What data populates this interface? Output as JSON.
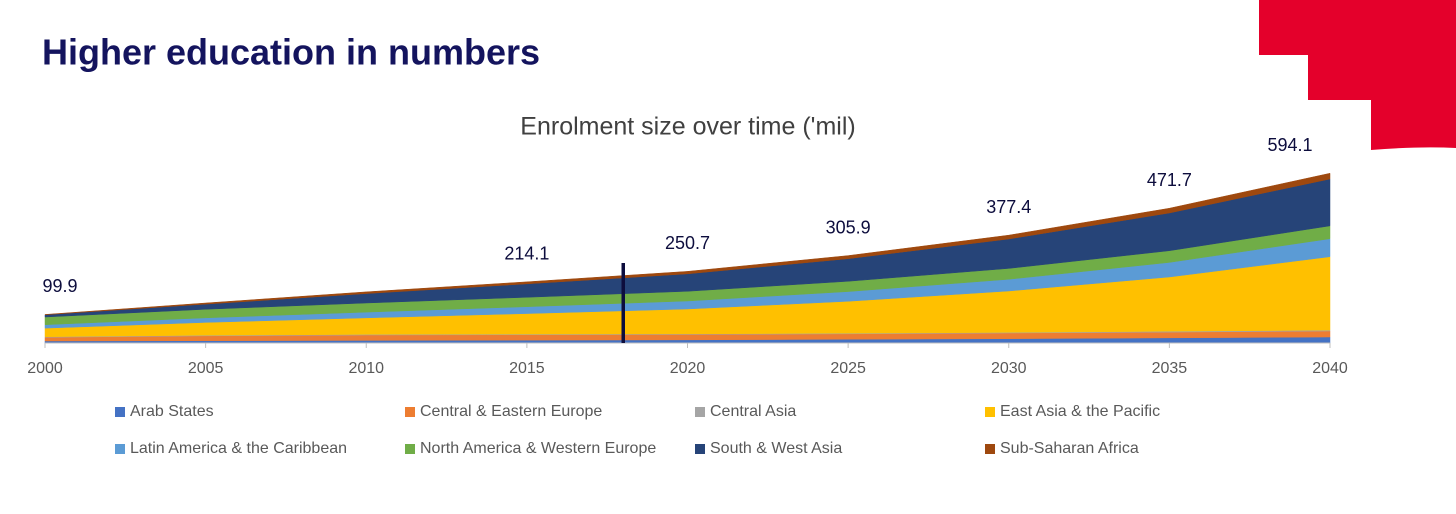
{
  "page_title": "Higher education in numbers",
  "chart_data": {
    "type": "stacked_area",
    "title": "Enrolment size over time ('mil)",
    "x": [
      2000,
      2005,
      2010,
      2015,
      2020,
      2025,
      2030,
      2035,
      2040
    ],
    "xlim": [
      2000,
      2040
    ],
    "xticks": [
      2000,
      2005,
      2010,
      2015,
      2020,
      2025,
      2030,
      2035,
      2040
    ],
    "ylim": [
      0,
      700
    ],
    "legend": "bottom",
    "series": [
      {
        "name": "Arab States",
        "color": "#4472c4",
        "values": [
          7,
          8,
          9,
          10,
          11,
          13,
          15,
          18,
          21
        ]
      },
      {
        "name": "Central & Eastern Europe",
        "color": "#ed7d31",
        "values": [
          13,
          17,
          19,
          19,
          19,
          19,
          20,
          20,
          21
        ]
      },
      {
        "name": "Central Asia",
        "color": "#a5a5a5",
        "values": [
          2,
          2,
          2,
          2,
          2,
          2,
          2,
          3,
          3
        ]
      },
      {
        "name": "East Asia & the Pacific",
        "color": "#ffc000",
        "values": [
          29.9,
          45,
          58,
          72,
          87,
          112,
          145,
          190,
          257
        ]
      },
      {
        "name": "Latin America & the Caribbean",
        "color": "#5b9bd5",
        "values": [
          12,
          16,
          20,
          24,
          28,
          34,
          41,
          51,
          63
        ]
      },
      {
        "name": "North America & Western Europe",
        "color": "#70ad47",
        "values": [
          27,
          30,
          32,
          33,
          34,
          36,
          38,
          41,
          45
        ]
      },
      {
        "name": "South & West Asia",
        "color": "#264478",
        "values": [
          8,
          18,
          33,
          47,
          61,
          79,
          103,
          132,
          164
        ]
      },
      {
        "name": "Sub-Saharan Africa",
        "color": "#9e480e",
        "values": [
          1,
          4,
          6,
          7.1,
          8.7,
          10.9,
          13.4,
          16.7,
          20.1
        ]
      }
    ],
    "total_labels": {
      "x": [
        2000,
        2015,
        2020,
        2025,
        2030,
        2035,
        2040
      ],
      "values": [
        99.9,
        214.1,
        250.7,
        305.9,
        377.4,
        471.7,
        594.1
      ]
    },
    "marker_x": 2018
  }
}
